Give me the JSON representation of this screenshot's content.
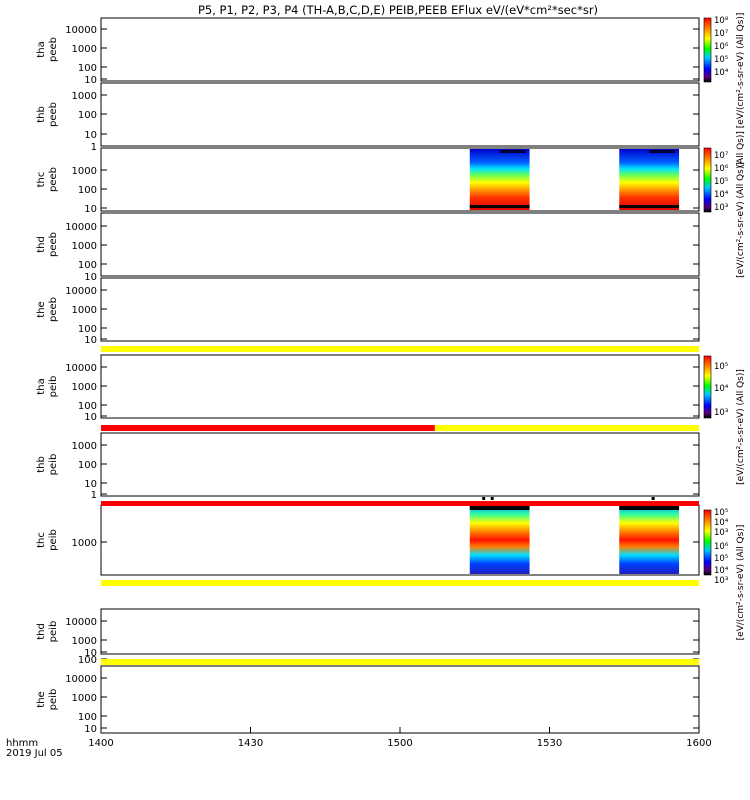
{
  "title": "P5, P1, P2, P3, P4 (TH-A,B,C,D,E) PEIB,PEEB EFlux eV/(eV*cm²*sec*sr)",
  "xaxis": {
    "label_line1": "hhmm",
    "label_line2": "2019 Jul 05",
    "tick_labels": [
      "1400",
      "1430",
      "1500",
      "1530",
      "1600"
    ],
    "range_minutes": [
      0,
      120
    ]
  },
  "colors": {
    "yellow_bar": "#ffff00",
    "red_bar": "#ff0000",
    "axis": "#000000"
  },
  "colorbars": [
    {
      "label": "(All Qs)] [eV/(cm²-s-sr-eV) (All Qs)]",
      "tick_labels": [
        "10⁸",
        "10⁷",
        "10⁶",
        "10⁵",
        "10⁴"
      ]
    },
    {
      "label": "[eV/(cm²-s-sr-eV) (All Qs)]",
      "tick_labels": [
        "10⁷",
        "10⁶",
        "10⁵",
        "10⁴",
        "10³"
      ]
    },
    {
      "label": "[eV/(cm²-s-sr-eV) (All Qs)]",
      "tick_labels": [
        "10⁵",
        "10⁴",
        "10³"
      ]
    },
    {
      "label": "[eV/(cm²-s-sr-eV) (All Qs)]",
      "tick_labels": [
        "10⁵",
        "10⁴",
        "10³",
        "10⁶",
        "10⁵",
        "10⁴",
        "10³"
      ]
    }
  ],
  "chart_data": [
    {
      "type": "heatmap",
      "name_line1": "tha",
      "name_line2": "peeb",
      "yscale": "log",
      "ytick_labels": [
        "10000",
        "1000",
        "100",
        "10"
      ],
      "blocks": []
    },
    {
      "type": "heatmap",
      "name_line1": "thb",
      "name_line2": "peeb",
      "yscale": "log",
      "ytick_labels": [
        "1000",
        "100",
        "10",
        "1"
      ],
      "blocks": []
    },
    {
      "type": "heatmap",
      "name_line1": "thc",
      "name_line2": "peeb",
      "yscale": "log",
      "ytick_labels": [
        "1000",
        "100",
        "10"
      ],
      "blocks": [
        {
          "start_min": 74,
          "end_min": 86
        },
        {
          "start_min": 104,
          "end_min": 116
        }
      ]
    },
    {
      "type": "heatmap",
      "name_line1": "thd",
      "name_line2": "peeb",
      "yscale": "log",
      "ytick_labels": [
        "10000",
        "1000",
        "100",
        "10"
      ],
      "blocks": []
    },
    {
      "type": "heatmap",
      "name_line1": "the",
      "name_line2": "peeb",
      "yscale": "log",
      "ytick_labels": [
        "10000",
        "1000",
        "100",
        "10"
      ],
      "blocks": []
    },
    {
      "type": "heatmap",
      "name_line1": "tha",
      "name_line2": "peib",
      "yscale": "log",
      "ytick_labels": [
        "10000",
        "1000",
        "100",
        "10"
      ],
      "blocks": []
    },
    {
      "type": "heatmap",
      "name_line1": "thb",
      "name_line2": "peib",
      "yscale": "log",
      "ytick_labels": [
        "1000",
        "100",
        "10",
        "1"
      ],
      "blocks": []
    },
    {
      "type": "heatmap",
      "name_line1": "thc",
      "name_line2": "peib",
      "yscale": "log",
      "ytick_labels": [
        "1000"
      ],
      "blocks": [
        {
          "start_min": 74,
          "end_min": 86
        },
        {
          "start_min": 104,
          "end_min": 116
        }
      ]
    },
    {
      "type": "heatmap",
      "name_line1": "thd",
      "name_line2": "peib",
      "yscale": "log",
      "ytick_labels": [
        "10000",
        "1000",
        "100",
        "10"
      ],
      "blocks": []
    },
    {
      "type": "heatmap",
      "name_line1": "the",
      "name_line2": "peib",
      "yscale": "log",
      "ytick_labels": [
        "10000",
        "1000",
        "100",
        "10"
      ],
      "blocks": []
    }
  ]
}
